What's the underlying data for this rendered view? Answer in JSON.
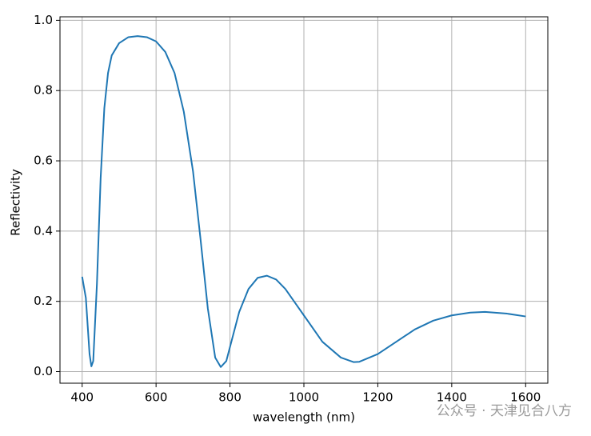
{
  "chart_data": {
    "type": "line",
    "xlabel": "wavelength (nm)",
    "ylabel": "Reflectivity",
    "watermark": "公众号 · 天津见合八方",
    "x": [
      400,
      410,
      420,
      425,
      430,
      440,
      450,
      460,
      470,
      480,
      500,
      525,
      550,
      575,
      600,
      625,
      650,
      675,
      700,
      720,
      740,
      760,
      775,
      790,
      800,
      825,
      850,
      875,
      900,
      925,
      950,
      1000,
      1050,
      1100,
      1135,
      1150,
      1200,
      1250,
      1300,
      1350,
      1400,
      1450,
      1490,
      1550,
      1600
    ],
    "series": [
      {
        "name": "Reflectivity",
        "color": "#1f77b4",
        "values": [
          0.27,
          0.21,
          0.05,
          0.015,
          0.03,
          0.25,
          0.55,
          0.75,
          0.85,
          0.9,
          0.935,
          0.952,
          0.955,
          0.952,
          0.94,
          0.91,
          0.85,
          0.74,
          0.57,
          0.38,
          0.18,
          0.04,
          0.013,
          0.03,
          0.07,
          0.17,
          0.235,
          0.267,
          0.273,
          0.262,
          0.235,
          0.16,
          0.085,
          0.04,
          0.027,
          0.028,
          0.05,
          0.085,
          0.12,
          0.145,
          0.16,
          0.168,
          0.17,
          0.165,
          0.157
        ]
      }
    ],
    "xlim": [
      340,
      1660
    ],
    "ylim": [
      -0.033,
      1.01
    ],
    "xticks": [
      400,
      600,
      800,
      1000,
      1200,
      1400,
      1600
    ],
    "yticks": [
      {
        "value": 0,
        "label": "0.0"
      },
      0.2,
      0.4,
      0.6,
      0.8,
      {
        "value": 1,
        "label": "1.0"
      }
    ],
    "grid": true
  }
}
